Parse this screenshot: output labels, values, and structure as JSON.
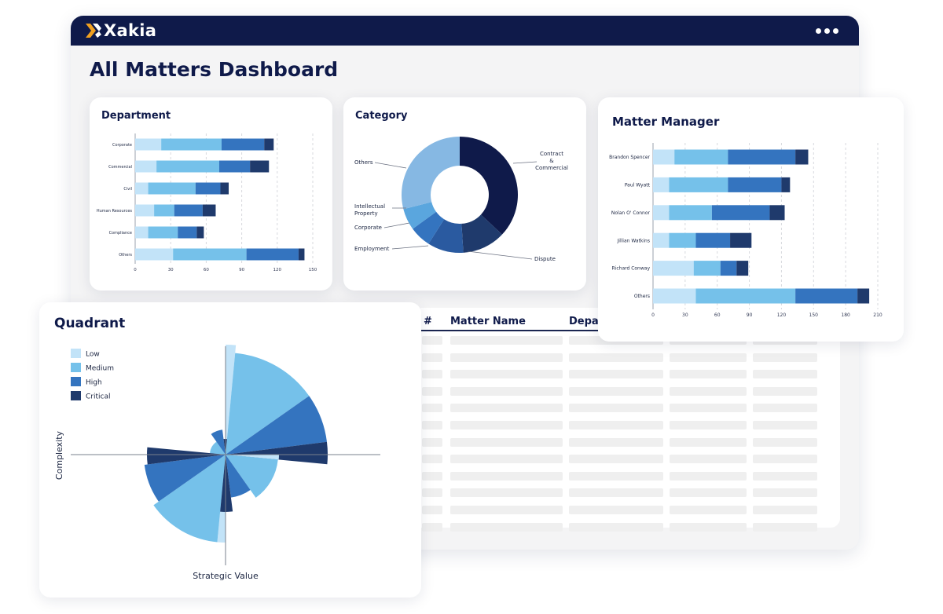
{
  "app": {
    "name": "Xakia",
    "page_title": "All Matters Dashboard",
    "menu_icon": "more-horizontal-icon"
  },
  "colors": {
    "low": "#c2e3f8",
    "medium": "#75c1ea",
    "high": "#3474bf",
    "critical": "#1f3a6c",
    "navy": "#0f1a4a"
  },
  "department": {
    "title": "Department",
    "chart_data": {
      "type": "bar",
      "orientation": "horizontal",
      "stacked": true,
      "categories": [
        "Corporate",
        "Commercial",
        "Civil",
        "Human Resources",
        "Compliance",
        "Others"
      ],
      "series": [
        {
          "name": "Low",
          "values": [
            22,
            18,
            11,
            16,
            11,
            32
          ]
        },
        {
          "name": "Medium",
          "values": [
            51,
            53,
            40,
            17,
            25,
            62
          ]
        },
        {
          "name": "High",
          "values": [
            36,
            26,
            21,
            24,
            16,
            44
          ]
        },
        {
          "name": "Critical",
          "values": [
            8,
            16,
            7,
            11,
            6,
            5
          ]
        }
      ],
      "xticks": [
        "0",
        "30",
        "60",
        "90",
        "120",
        "150"
      ],
      "xlim": [
        0,
        150
      ]
    }
  },
  "category": {
    "title": "Category",
    "chart_data": {
      "type": "pie",
      "donut": true,
      "labels": [
        "Contract & Commercial",
        "Dispute",
        "Employment",
        "Corporate",
        "Intellectual Property",
        "Others"
      ],
      "values": [
        37,
        12,
        10,
        6,
        6,
        29
      ]
    }
  },
  "matter_manager": {
    "title": "Matter Manager",
    "chart_data": {
      "type": "bar",
      "orientation": "horizontal",
      "stacked": true,
      "categories": [
        "Brandon Spencer",
        "Paul Wyatt",
        "Nolan O' Connor",
        "Jillian Watkins",
        "Richard Conway",
        "Others"
      ],
      "series": [
        {
          "name": "Low",
          "values": [
            20,
            15,
            15,
            15,
            38,
            40
          ]
        },
        {
          "name": "Medium",
          "values": [
            50,
            55,
            40,
            25,
            25,
            93
          ]
        },
        {
          "name": "High",
          "values": [
            63,
            50,
            54,
            32,
            15,
            58
          ]
        },
        {
          "name": "Critical",
          "values": [
            12,
            8,
            14,
            20,
            11,
            11
          ]
        }
      ],
      "xticks": [
        "0",
        "30",
        "60",
        "90",
        "120",
        "150",
        "180",
        "210"
      ],
      "xlim": [
        0,
        210
      ]
    }
  },
  "table": {
    "columns": [
      "#",
      "Matter Name",
      "Depar"
    ],
    "row_count": 12
  },
  "quadrant": {
    "title": "Quadrant",
    "legend": [
      "Low",
      "Medium",
      "High",
      "Critical"
    ],
    "xlabel": "Strategic Value",
    "ylabel": "Complexity",
    "chart_data": {
      "type": "polar-area",
      "quadrants": [
        {
          "name": "top-right",
          "values": [
            140,
            130,
            130,
            130
          ]
        },
        {
          "name": "top-left",
          "values": [
            10,
            20,
            32,
            20
          ]
        },
        {
          "name": "bottom-left",
          "values": [
            112,
            112,
            104,
            100
          ]
        },
        {
          "name": "bottom-right",
          "values": [
            68,
            67,
            55,
            73
          ]
        }
      ]
    }
  }
}
